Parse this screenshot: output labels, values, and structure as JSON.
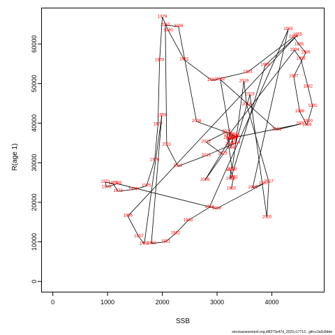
{
  "chart_data": {
    "type": "scatter",
    "title": "",
    "xlabel": "SSB",
    "ylabel": "R(age 1)",
    "xlim": [
      -200,
      4950
    ],
    "ylim": [
      -2600,
      69000
    ],
    "x_ticks": [
      0,
      1000,
      2000,
      3000,
      4000
    ],
    "y_ticks": [
      0,
      10000,
      20000,
      30000,
      40000,
      50000,
      60000
    ],
    "grid": false,
    "legend": "none",
    "connect_points_in_year_order": true,
    "point_label_color": "#ff0000",
    "line_color": "#000000",
    "points": [
      {
        "year": "1950",
        "x": 3260,
        "y": 23400
      },
      {
        "year": "1951",
        "x": 3300,
        "y": 26200
      },
      {
        "year": "1952",
        "x": 3245,
        "y": 28100
      },
      {
        "year": "1953",
        "x": 3250,
        "y": 25900
      },
      {
        "year": "1954",
        "x": 3880,
        "y": 54600
      },
      {
        "year": "1955",
        "x": 4470,
        "y": 62300
      },
      {
        "year": "1956",
        "x": 1370,
        "y": 16500
      },
      {
        "year": "1957",
        "x": 1570,
        "y": 11300
      },
      {
        "year": "1958",
        "x": 1670,
        "y": 9500
      },
      {
        "year": "1959",
        "x": 1990,
        "y": 41900
      },
      {
        "year": "1960",
        "x": 1800,
        "y": 9600
      },
      {
        "year": "1961",
        "x": 2060,
        "y": 10000
      },
      {
        "year": "1962",
        "x": 2240,
        "y": 12100
      },
      {
        "year": "1963",
        "x": 2470,
        "y": 15400
      },
      {
        "year": "1964",
        "x": 2860,
        "y": 18700
      },
      {
        "year": "1965",
        "x": 4300,
        "y": 63700
      },
      {
        "year": "1966",
        "x": 3650,
        "y": 23700
      },
      {
        "year": "1967",
        "x": 3850,
        "y": 24700
      },
      {
        "year": "1968",
        "x": 2990,
        "y": 18400
      },
      {
        "year": "1969",
        "x": 1175,
        "y": 24700
      },
      {
        "year": "1970",
        "x": 980,
        "y": 23800
      },
      {
        "year": "1971",
        "x": 960,
        "y": 25100
      },
      {
        "year": "1972",
        "x": 1100,
        "y": 24700
      },
      {
        "year": "1973",
        "x": 1190,
        "y": 22800
      },
      {
        "year": "1974",
        "x": 1460,
        "y": 23200
      },
      {
        "year": "1975",
        "x": 1710,
        "y": 24100
      },
      {
        "year": "1976",
        "x": 1860,
        "y": 30600
      },
      {
        "year": "1977",
        "x": 1920,
        "y": 39600
      },
      {
        "year": "1978",
        "x": 1950,
        "y": 55900
      },
      {
        "year": "1979",
        "x": 2000,
        "y": 66800
      },
      {
        "year": "1980",
        "x": 2110,
        "y": 63400
      },
      {
        "year": "1981",
        "x": 2400,
        "y": 56000
      },
      {
        "year": "1982",
        "x": 2905,
        "y": 50800
      },
      {
        "year": "1983",
        "x": 3560,
        "y": 52900
      },
      {
        "year": "1984",
        "x": 4400,
        "y": 61800
      },
      {
        "year": "1985",
        "x": 4500,
        "y": 59800
      },
      {
        "year": "1986",
        "x": 4620,
        "y": 57800
      },
      {
        "year": "1987",
        "x": 4400,
        "y": 51800
      },
      {
        "year": "1988",
        "x": 4510,
        "y": 42900
      },
      {
        "year": "1989",
        "x": 4640,
        "y": 39500
      },
      {
        "year": "1990",
        "x": 4660,
        "y": 40400
      },
      {
        "year": "1991",
        "x": 4745,
        "y": 44300
      },
      {
        "year": "1992",
        "x": 4660,
        "y": 49200
      },
      {
        "year": "1993",
        "x": 4530,
        "y": 56200
      },
      {
        "year": "1994",
        "x": 4415,
        "y": 58400
      },
      {
        "year": "1995",
        "x": 3210,
        "y": 37000
      },
      {
        "year": "1996",
        "x": 3335,
        "y": 36700
      },
      {
        "year": "1997",
        "x": 3280,
        "y": 36000
      },
      {
        "year": "1998",
        "x": 3250,
        "y": 33700
      },
      {
        "year": "1999",
        "x": 3290,
        "y": 36300
      },
      {
        "year": "2000",
        "x": 4530,
        "y": 39800
      },
      {
        "year": "2001",
        "x": 4090,
        "y": 38300
      },
      {
        "year": "2002",
        "x": 3060,
        "y": 51000
      },
      {
        "year": "2003",
        "x": 3250,
        "y": 35900
      },
      {
        "year": "2004",
        "x": 3205,
        "y": 36200
      },
      {
        "year": "2005",
        "x": 3235,
        "y": 34600
      },
      {
        "year": "2006",
        "x": 2780,
        "y": 25600
      },
      {
        "year": "2007",
        "x": 3290,
        "y": 37100
      },
      {
        "year": "2008",
        "x": 2625,
        "y": 40400
      },
      {
        "year": "2009",
        "x": 2295,
        "y": 64400
      },
      {
        "year": "2010",
        "x": 2055,
        "y": 64800
      },
      {
        "year": "2011",
        "x": 2080,
        "y": 34500
      },
      {
        "year": "2012",
        "x": 2285,
        "y": 29100
      },
      {
        "year": "2013",
        "x": 2800,
        "y": 31800
      },
      {
        "year": "2014",
        "x": 3340,
        "y": 35000
      },
      {
        "year": "2015",
        "x": 3600,
        "y": 47200
      },
      {
        "year": "2016",
        "x": 3910,
        "y": 16200
      },
      {
        "year": "2017",
        "x": 3945,
        "y": 25200
      },
      {
        "year": "2018",
        "x": 3540,
        "y": 44700
      },
      {
        "year": "2019",
        "x": 3490,
        "y": 50600
      },
      {
        "year": "2020",
        "x": 3275,
        "y": 28300
      },
      {
        "year": "2021",
        "x": 3175,
        "y": 37800
      },
      {
        "year": "2022",
        "x": 2800,
        "y": 35200
      },
      {
        "year": "2023",
        "x": 3100,
        "y": 32200
      }
    ]
  },
  "footer": {
    "text": "stockassessment.org,ef8273e47d_2023,r17713 , gitrcc2a0c8dde"
  }
}
